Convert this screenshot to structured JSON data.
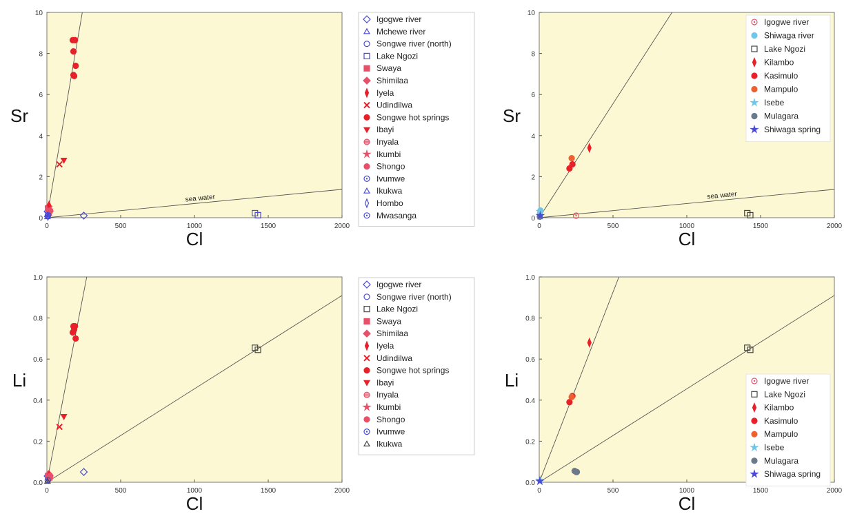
{
  "colors": {
    "plot_background": "#fcf8d3",
    "blue": "#4a4ad6",
    "red": "#e8202a",
    "pink": "#e8506a",
    "orange": "#ee6030",
    "lightblue": "#6ec6ea",
    "gray": "#6a7a8a",
    "black": "#444444"
  },
  "chart_data": [
    {
      "type": "scatter",
      "xlabel": "Cl",
      "ylabel": "Sr",
      "xlim": [
        0,
        2000
      ],
      "ylim": [
        0,
        10
      ],
      "xticks": [
        "0",
        "500",
        "1000",
        "1500",
        "2000"
      ],
      "yticks": [
        "0",
        "2",
        "4",
        "6",
        "8",
        "10"
      ],
      "grid": false,
      "legend_position": "outside-right",
      "lines": [
        {
          "label": "",
          "from": [
            0,
            0
          ],
          "to": [
            240,
            10
          ]
        },
        {
          "label": "sea water",
          "from": [
            0,
            0
          ],
          "to": [
            2000,
            1.38
          ]
        }
      ],
      "series": [
        {
          "name": "Igogwe river",
          "marker": "diamond",
          "color": "blue",
          "filled": false,
          "points": [
            [
              250,
              0.1
            ],
            [
              5,
              0.3
            ]
          ]
        },
        {
          "name": "Mchewe river",
          "marker": "triangle",
          "color": "blue",
          "filled": false,
          "points": [
            [
              3,
              0.15
            ]
          ]
        },
        {
          "name": "Songwe river (north)",
          "marker": "circle",
          "color": "blue",
          "filled": false,
          "points": [
            [
              10,
              0.2
            ]
          ]
        },
        {
          "name": "Lake Ngozi",
          "marker": "square",
          "color": "blue",
          "filled": false,
          "points": [
            [
              1410,
              0.22
            ],
            [
              1430,
              0.12
            ]
          ]
        },
        {
          "name": "Swaya",
          "marker": "square",
          "color": "pink",
          "filled": true,
          "points": [
            [
              8,
              0.45
            ]
          ]
        },
        {
          "name": "Shimilaa",
          "marker": "diamond",
          "color": "pink",
          "filled": true,
          "points": [
            [
              12,
              0.55
            ]
          ]
        },
        {
          "name": "Iyela",
          "marker": "thin-diamond",
          "color": "red",
          "filled": true,
          "points": [
            [
              15,
              0.6
            ]
          ]
        },
        {
          "name": "Udindilwa",
          "marker": "x",
          "color": "red",
          "filled": true,
          "points": [
            [
              85,
              2.6
            ]
          ]
        },
        {
          "name": "Songwe hot springs",
          "marker": "circle",
          "color": "red",
          "filled": true,
          "points": [
            [
              175,
              8.65
            ],
            [
              190,
              8.65
            ],
            [
              180,
              8.1
            ],
            [
              195,
              7.4
            ],
            [
              180,
              6.95
            ],
            [
              185,
              6.9
            ]
          ]
        },
        {
          "name": "Ibayi",
          "marker": "triangle-down",
          "color": "red",
          "filled": true,
          "points": [
            [
              115,
              2.8
            ]
          ]
        },
        {
          "name": "Inyala",
          "marker": "half-circle",
          "color": "pink",
          "filled": true,
          "points": [
            [
              20,
              0.3
            ]
          ]
        },
        {
          "name": "Ikumbi",
          "marker": "star",
          "color": "pink",
          "filled": true,
          "points": [
            [
              18,
              0.25
            ]
          ]
        },
        {
          "name": "Shongo",
          "marker": "circle",
          "color": "pink",
          "filled": true,
          "points": [
            [
              22,
              0.35
            ]
          ]
        },
        {
          "name": "Ivumwe",
          "marker": "circle-dot",
          "color": "blue",
          "filled": false,
          "points": [
            [
              6,
              0.1
            ]
          ]
        },
        {
          "name": "Ikukwa",
          "marker": "triangle",
          "color": "blue",
          "filled": false,
          "points": [
            [
              4,
              0.05
            ]
          ]
        },
        {
          "name": "Hombo",
          "marker": "thin-diamond",
          "color": "blue",
          "filled": false,
          "points": [
            [
              7,
              0.08
            ]
          ]
        },
        {
          "name": "Mwasanga",
          "marker": "circle-dot",
          "color": "blue",
          "filled": false,
          "points": [
            [
              9,
              0.12
            ]
          ]
        }
      ]
    },
    {
      "type": "scatter",
      "xlabel": "Cl",
      "ylabel": "Sr",
      "xlim": [
        0,
        2000
      ],
      "ylim": [
        0,
        10
      ],
      "xticks": [
        "0",
        "500",
        "1000",
        "1500",
        "2000"
      ],
      "yticks": [
        "0",
        "2",
        "4",
        "6",
        "8",
        "10"
      ],
      "grid": false,
      "legend_position": "top-right",
      "lines": [
        {
          "label": "",
          "from": [
            0,
            0
          ],
          "to": [
            900,
            10
          ]
        },
        {
          "label": "sea water",
          "from": [
            0,
            0
          ],
          "to": [
            2000,
            1.38
          ]
        }
      ],
      "series": [
        {
          "name": "Igogwe river",
          "marker": "circle-dot",
          "color": "pink",
          "filled": false,
          "points": [
            [
              250,
              0.1
            ]
          ]
        },
        {
          "name": "Shiwaga river",
          "marker": "circle",
          "color": "lightblue",
          "filled": true,
          "points": [
            [
              5,
              0.2
            ],
            [
              8,
              0.35
            ]
          ]
        },
        {
          "name": "Lake Ngozi",
          "marker": "square",
          "color": "black",
          "filled": false,
          "points": [
            [
              1410,
              0.22
            ],
            [
              1430,
              0.12
            ]
          ]
        },
        {
          "name": "Kilambo",
          "marker": "thin-diamond",
          "color": "red",
          "filled": true,
          "points": [
            [
              340,
              3.4
            ]
          ]
        },
        {
          "name": "Kasimulo",
          "marker": "circle",
          "color": "red",
          "filled": true,
          "points": [
            [
              205,
              2.4
            ],
            [
              225,
              2.6
            ]
          ]
        },
        {
          "name": "Mampulo",
          "marker": "circle",
          "color": "orange",
          "filled": true,
          "points": [
            [
              220,
              2.9
            ]
          ]
        },
        {
          "name": "Isebe",
          "marker": "star",
          "color": "lightblue",
          "filled": true,
          "points": [
            [
              6,
              0.3
            ]
          ]
        },
        {
          "name": "Mulagara",
          "marker": "circle",
          "color": "gray",
          "filled": true,
          "points": [
            [
              4,
              0.05
            ]
          ]
        },
        {
          "name": "Shiwaga spring",
          "marker": "star",
          "color": "blue",
          "filled": true,
          "points": [
            [
              7,
              0.1
            ]
          ]
        }
      ]
    },
    {
      "type": "scatter",
      "xlabel": "Cl",
      "ylabel": "Li",
      "xlim": [
        0,
        2000
      ],
      "ylim": [
        0,
        1.0
      ],
      "xticks": [
        "0",
        "500",
        "1000",
        "1500",
        "2000"
      ],
      "yticks": [
        "0.0",
        "0.2",
        "0.4",
        "0.6",
        "0.8",
        "1.0"
      ],
      "grid": false,
      "legend_position": "outside-right",
      "lines": [
        {
          "label": "",
          "from": [
            0,
            0
          ],
          "to": [
            270,
            1.0
          ]
        },
        {
          "label": "",
          "from": [
            0,
            0
          ],
          "to": [
            2000,
            0.91
          ]
        }
      ],
      "series": [
        {
          "name": "Igogwe river",
          "marker": "diamond",
          "color": "blue",
          "filled": false,
          "points": [
            [
              250,
              0.05
            ],
            [
              5,
              0.03
            ]
          ]
        },
        {
          "name": "Songwe river (north)",
          "marker": "circle",
          "color": "blue",
          "filled": false,
          "points": [
            [
              10,
              0.02
            ]
          ]
        },
        {
          "name": "Lake Ngozi",
          "marker": "square",
          "color": "black",
          "filled": false,
          "points": [
            [
              1410,
              0.655
            ],
            [
              1430,
              0.645
            ]
          ]
        },
        {
          "name": "Swaya",
          "marker": "square",
          "color": "pink",
          "filled": true,
          "points": [
            [
              8,
              0.03
            ]
          ]
        },
        {
          "name": "Shimilaa",
          "marker": "diamond",
          "color": "pink",
          "filled": true,
          "points": [
            [
              12,
              0.04
            ]
          ]
        },
        {
          "name": "Iyela",
          "marker": "thin-diamond",
          "color": "red",
          "filled": true,
          "points": [
            [
              15,
              0.035
            ]
          ]
        },
        {
          "name": "Udindilwa",
          "marker": "x",
          "color": "red",
          "filled": true,
          "points": [
            [
              85,
              0.27
            ]
          ]
        },
        {
          "name": "Songwe hot springs",
          "marker": "circle",
          "color": "red",
          "filled": true,
          "points": [
            [
              180,
              0.76
            ],
            [
              190,
              0.76
            ],
            [
              185,
              0.745
            ],
            [
              175,
              0.73
            ],
            [
              195,
              0.7
            ]
          ]
        },
        {
          "name": "Ibayi",
          "marker": "triangle-down",
          "color": "red",
          "filled": true,
          "points": [
            [
              115,
              0.32
            ]
          ]
        },
        {
          "name": "Inyala",
          "marker": "half-circle",
          "color": "pink",
          "filled": true,
          "points": [
            [
              20,
              0.02
            ]
          ]
        },
        {
          "name": "Ikumbi",
          "marker": "star",
          "color": "pink",
          "filled": true,
          "points": [
            [
              18,
              0.025
            ]
          ]
        },
        {
          "name": "Shongo",
          "marker": "circle",
          "color": "pink",
          "filled": true,
          "points": [
            [
              22,
              0.03
            ]
          ]
        },
        {
          "name": "Ivumwe",
          "marker": "circle-dot",
          "color": "blue",
          "filled": false,
          "points": [
            [
              6,
              0.01
            ]
          ]
        },
        {
          "name": "Ikukwa",
          "marker": "triangle",
          "color": "black",
          "filled": false,
          "points": [
            [
              4,
              0.005
            ]
          ]
        }
      ]
    },
    {
      "type": "scatter",
      "xlabel": "Cl",
      "ylabel": "Li",
      "xlim": [
        0,
        2000
      ],
      "ylim": [
        0,
        1.0
      ],
      "xticks": [
        "0",
        "500",
        "1000",
        "1500",
        "2000"
      ],
      "yticks": [
        "0.0",
        "0.2",
        "0.4",
        "0.6",
        "0.8",
        "1.0"
      ],
      "grid": false,
      "legend_position": "bottom-right",
      "lines": [
        {
          "label": "",
          "from": [
            0,
            0
          ],
          "to": [
            540,
            1.0
          ]
        },
        {
          "label": "",
          "from": [
            0,
            0
          ],
          "to": [
            2000,
            0.91
          ]
        }
      ],
      "series": [
        {
          "name": "Igogwe river",
          "marker": "circle-dot",
          "color": "pink",
          "filled": false,
          "points": [
            [
              250,
              0.05
            ]
          ]
        },
        {
          "name": "Lake Ngozi",
          "marker": "square",
          "color": "black",
          "filled": false,
          "points": [
            [
              1410,
              0.655
            ],
            [
              1430,
              0.645
            ]
          ]
        },
        {
          "name": "Kilambo",
          "marker": "thin-diamond",
          "color": "red",
          "filled": true,
          "points": [
            [
              340,
              0.68
            ]
          ]
        },
        {
          "name": "Kasimulo",
          "marker": "circle",
          "color": "red",
          "filled": true,
          "points": [
            [
              205,
              0.39
            ],
            [
              225,
              0.42
            ]
          ]
        },
        {
          "name": "Mampulo",
          "marker": "circle",
          "color": "orange",
          "filled": true,
          "points": [
            [
              220,
              0.415
            ]
          ]
        },
        {
          "name": "Isebe",
          "marker": "star",
          "color": "lightblue",
          "filled": true,
          "points": [
            [
              6,
              0.01
            ]
          ]
        },
        {
          "name": "Mulagara",
          "marker": "circle",
          "color": "gray",
          "filled": true,
          "points": [
            [
              240,
              0.055
            ],
            [
              255,
              0.05
            ]
          ]
        },
        {
          "name": "Shiwaga spring",
          "marker": "star",
          "color": "blue",
          "filled": true,
          "points": [
            [
              4,
              0.005
            ]
          ]
        }
      ]
    }
  ]
}
